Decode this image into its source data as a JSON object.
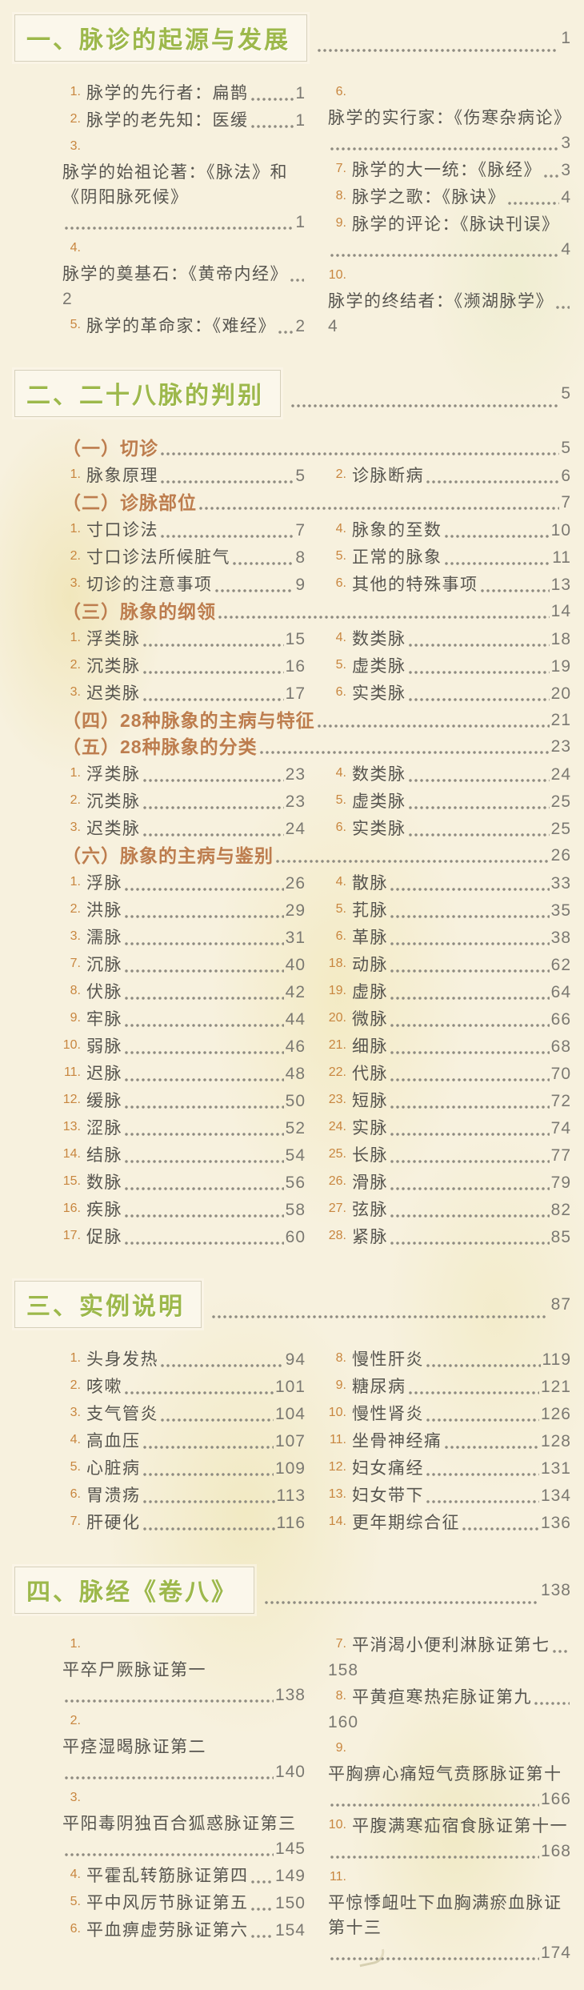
{
  "page": {
    "background": "#f7f1de",
    "accent_green": "#9db84b",
    "accent_tan": "#bd7d4e",
    "accent_orange": "#c8863f",
    "text_color": "#57554f"
  },
  "toc": {
    "sections": [
      {
        "title": "一、脉诊的起源与发展",
        "page": "1",
        "blocks": [
          {
            "type": "cols",
            "left": [
              {
                "num": "1.",
                "text": "脉学的先行者：扁鹊",
                "page": "1"
              },
              {
                "num": "2.",
                "text": "脉学的老先知：医缓",
                "page": "1"
              },
              {
                "num": "3.",
                "text": "脉学的始祖论著：《脉法》和《阴阳脉死候》",
                "page": "1"
              },
              {
                "num": "4.",
                "text": "脉学的奠基石：《黄帝内经》",
                "page": "2"
              },
              {
                "num": "5.",
                "text": "脉学的革命家：《难经》",
                "page": "2"
              }
            ],
            "right": [
              {
                "num": "6.",
                "text": "脉学的实行家：《伤寒杂病论》",
                "page": "3"
              },
              {
                "num": "7.",
                "text": "脉学的大一统：《脉经》",
                "page": "3"
              },
              {
                "num": "8.",
                "text": "脉学之歌：《脉诀》",
                "page": "4"
              },
              {
                "num": "9.",
                "text": "脉学的评论：《脉诀刊误》",
                "page": "4"
              },
              {
                "num": "10.",
                "text": "脉学的终结者：《濒湖脉学》",
                "page": "4"
              }
            ]
          }
        ]
      },
      {
        "title": "二、二十八脉的判别",
        "page": "5",
        "blocks": [
          {
            "type": "sub",
            "text": "（一）切诊",
            "page": "5"
          },
          {
            "type": "cols",
            "left": [
              {
                "num": "1.",
                "text": "脉象原理",
                "page": "5"
              }
            ],
            "right": [
              {
                "num": "2.",
                "text": "诊脉断病",
                "page": "6"
              }
            ]
          },
          {
            "type": "sub",
            "text": "（二）诊脉部位",
            "page": "7"
          },
          {
            "type": "cols",
            "left": [
              {
                "num": "1.",
                "text": "寸口诊法",
                "page": "7"
              },
              {
                "num": "2.",
                "text": "寸口诊法所候脏气",
                "page": "8"
              },
              {
                "num": "3.",
                "text": "切诊的注意事项",
                "page": "9"
              }
            ],
            "right": [
              {
                "num": "4.",
                "text": "脉象的至数",
                "page": "10"
              },
              {
                "num": "5.",
                "text": "正常的脉象",
                "page": "11"
              },
              {
                "num": "6.",
                "text": "其他的特殊事项",
                "page": "13"
              }
            ]
          },
          {
            "type": "sub",
            "text": "（三）脉象的纲领",
            "page": "14"
          },
          {
            "type": "cols",
            "left": [
              {
                "num": "1.",
                "text": "浮类脉",
                "page": "15"
              },
              {
                "num": "2.",
                "text": "沉类脉",
                "page": "16"
              },
              {
                "num": "3.",
                "text": "迟类脉",
                "page": "17"
              }
            ],
            "right": [
              {
                "num": "4.",
                "text": "数类脉",
                "page": "18"
              },
              {
                "num": "5.",
                "text": "虚类脉",
                "page": "19"
              },
              {
                "num": "6.",
                "text": "实类脉",
                "page": "20"
              }
            ]
          },
          {
            "type": "sub",
            "text": "（四）28种脉象的主病与特征",
            "page": "21"
          },
          {
            "type": "sub",
            "text": "（五）28种脉象的分类",
            "page": "23"
          },
          {
            "type": "cols",
            "left": [
              {
                "num": "1.",
                "text": "浮类脉",
                "page": "23"
              },
              {
                "num": "2.",
                "text": "沉类脉",
                "page": "23"
              },
              {
                "num": "3.",
                "text": "迟类脉",
                "page": "24"
              }
            ],
            "right": [
              {
                "num": "4.",
                "text": "数类脉",
                "page": "24"
              },
              {
                "num": "5.",
                "text": "虚类脉",
                "page": "25"
              },
              {
                "num": "6.",
                "text": "实类脉",
                "page": "25"
              }
            ]
          },
          {
            "type": "sub",
            "text": "（六）脉象的主病与鉴别",
            "page": "26"
          },
          {
            "type": "cols",
            "left": [
              {
                "num": "1.",
                "text": "浮脉",
                "page": "26"
              },
              {
                "num": "2.",
                "text": "洪脉",
                "page": "29"
              },
              {
                "num": "3.",
                "text": "濡脉",
                "page": "31"
              },
              {
                "num": "7.",
                "text": "沉脉",
                "page": "40"
              },
              {
                "num": "8.",
                "text": "伏脉",
                "page": "42"
              },
              {
                "num": "9.",
                "text": "牢脉",
                "page": "44"
              },
              {
                "num": "10.",
                "text": "弱脉",
                "page": "46"
              },
              {
                "num": "11.",
                "text": "迟脉",
                "page": "48"
              },
              {
                "num": "12.",
                "text": "缓脉",
                "page": "50"
              },
              {
                "num": "13.",
                "text": "涩脉",
                "page": "52"
              },
              {
                "num": "14.",
                "text": "结脉",
                "page": "54"
              },
              {
                "num": "15.",
                "text": "数脉",
                "page": "56"
              },
              {
                "num": "16.",
                "text": "疾脉",
                "page": "58"
              },
              {
                "num": "17.",
                "text": "促脉",
                "page": "60"
              }
            ],
            "right": [
              {
                "num": "4.",
                "text": "散脉",
                "page": "33"
              },
              {
                "num": "5.",
                "text": "芤脉",
                "page": "35"
              },
              {
                "num": "6.",
                "text": "革脉",
                "page": "38"
              },
              {
                "num": "18.",
                "text": "动脉",
                "page": "62"
              },
              {
                "num": "19.",
                "text": "虚脉",
                "page": "64"
              },
              {
                "num": "20.",
                "text": "微脉",
                "page": "66"
              },
              {
                "num": "21.",
                "text": "细脉",
                "page": "68"
              },
              {
                "num": "22.",
                "text": "代脉",
                "page": "70"
              },
              {
                "num": "23.",
                "text": "短脉",
                "page": "72"
              },
              {
                "num": "24.",
                "text": "实脉",
                "page": "74"
              },
              {
                "num": "25.",
                "text": "长脉",
                "page": "77"
              },
              {
                "num": "26.",
                "text": "滑脉",
                "page": "79"
              },
              {
                "num": "27.",
                "text": "弦脉",
                "page": "82"
              },
              {
                "num": "28.",
                "text": "紧脉",
                "page": "85"
              }
            ]
          }
        ]
      },
      {
        "title": "三、实例说明",
        "page": "87",
        "blocks": [
          {
            "type": "cols",
            "left": [
              {
                "num": "1.",
                "text": "头身发热",
                "page": "94"
              },
              {
                "num": "2.",
                "text": "咳嗽",
                "page": "101"
              },
              {
                "num": "3.",
                "text": "支气管炎",
                "page": "104"
              },
              {
                "num": "4.",
                "text": "高血压",
                "page": "107"
              },
              {
                "num": "5.",
                "text": "心脏病",
                "page": "109"
              },
              {
                "num": "6.",
                "text": "胃溃疡",
                "page": "113"
              },
              {
                "num": "7.",
                "text": "肝硬化",
                "page": "116"
              }
            ],
            "right": [
              {
                "num": "8.",
                "text": "慢性肝炎",
                "page": "119"
              },
              {
                "num": "9.",
                "text": "糖尿病",
                "page": "121"
              },
              {
                "num": "10.",
                "text": "慢性肾炎",
                "page": "126"
              },
              {
                "num": "11.",
                "text": "坐骨神经痛",
                "page": "128"
              },
              {
                "num": "12.",
                "text": "妇女痛经",
                "page": "131"
              },
              {
                "num": "13.",
                "text": "妇女带下",
                "page": "134"
              },
              {
                "num": "14.",
                "text": "更年期综合征",
                "page": "136"
              }
            ]
          }
        ]
      },
      {
        "title": "四、脉经《卷八》",
        "page": "138",
        "blocks": [
          {
            "type": "cols",
            "left": [
              {
                "num": "1.",
                "text": "平卒尸厥脉证第一",
                "page": "138",
                "break": true
              },
              {
                "num": "2.",
                "text": "平痉湿暍脉证第二",
                "page": "140",
                "break": true
              },
              {
                "num": "3.",
                "text": "平阳毒阴独百合狐惑脉证第三",
                "page": "145"
              },
              {
                "num": "4.",
                "text": "平霍乱转筋脉证第四",
                "page": "149"
              },
              {
                "num": "5.",
                "text": "平中风厉节脉证第五",
                "page": "150"
              },
              {
                "num": "6.",
                "text": "平血痹虚劳脉证第六",
                "page": "154"
              }
            ],
            "right": [
              {
                "num": "7.",
                "text": "平消渴小便利淋脉证第七",
                "page": "158"
              },
              {
                "num": "8.",
                "text": "平黄疸寒热疟脉证第九",
                "page": "160"
              },
              {
                "num": "9.",
                "text": "平胸痹心痛短气贲豚脉证第十",
                "page": "166"
              },
              {
                "num": "10.",
                "text": "平腹满寒疝宿食脉证第十一",
                "page": "168"
              },
              {
                "num": "11.",
                "text": "平惊悸衄吐下血胸满瘀血脉证第十三",
                "page": "174",
                "break": true
              }
            ]
          }
        ]
      }
    ]
  }
}
